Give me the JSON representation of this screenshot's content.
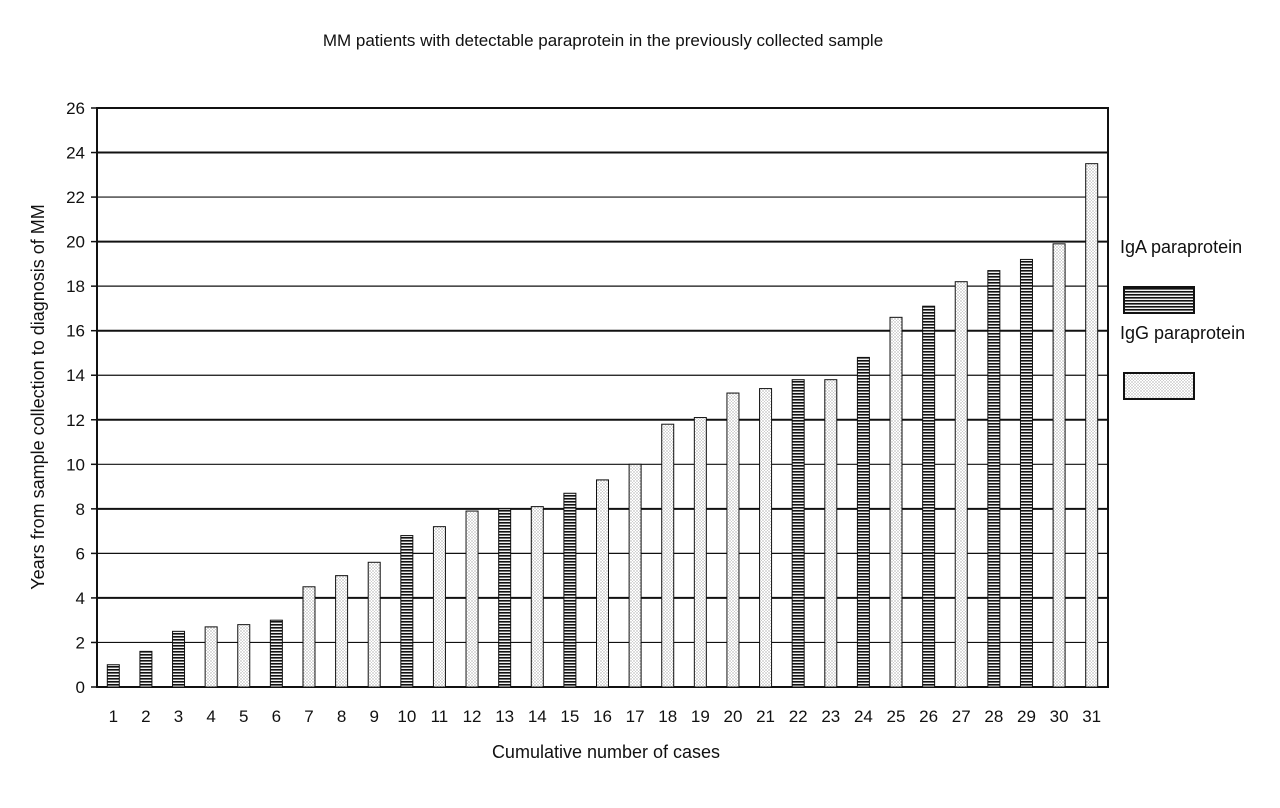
{
  "chart_data": {
    "type": "bar",
    "title": "MM patients with detectable paraprotein in the previously collected sample",
    "xlabel": "Cumulative number of cases",
    "ylabel": "Years from sample collection to diagnosis of MM",
    "ylim": [
      0,
      26
    ],
    "yticks": [
      "0",
      "2",
      "4",
      "6",
      "8",
      "10",
      "12",
      "14",
      "16",
      "18",
      "20",
      "22",
      "24",
      "26"
    ],
    "grid": "horizontal",
    "legend_position": "right",
    "series": [
      {
        "name": "IgA paraprotein",
        "pattern": "horizontal-stripes",
        "color": "#222222"
      },
      {
        "name": "IgG paraprotein",
        "pattern": "dots",
        "color": "#888888"
      }
    ],
    "categories": [
      "1",
      "2",
      "3",
      "4",
      "5",
      "6",
      "7",
      "8",
      "9",
      "10",
      "11",
      "12",
      "13",
      "14",
      "15",
      "16",
      "17",
      "18",
      "19",
      "20",
      "21",
      "22",
      "23",
      "24",
      "25",
      "26",
      "27",
      "28",
      "29",
      "30",
      "31"
    ],
    "values": [
      1.0,
      1.6,
      2.5,
      2.7,
      2.8,
      3.0,
      4.5,
      5.0,
      5.6,
      6.8,
      7.2,
      7.9,
      8.0,
      8.1,
      8.7,
      9.3,
      10.0,
      11.8,
      12.1,
      13.2,
      13.4,
      13.8,
      13.8,
      14.8,
      16.6,
      17.1,
      18.2,
      18.7,
      19.2,
      19.9,
      23.5
    ],
    "types": [
      "IgA",
      "IgA",
      "IgA",
      "IgG",
      "IgG",
      "IgA",
      "IgG",
      "IgG",
      "IgG",
      "IgA",
      "IgG",
      "IgG",
      "IgA",
      "IgG",
      "IgA",
      "IgG",
      "IgG",
      "IgG",
      "IgG",
      "IgG",
      "IgG",
      "IgA",
      "IgG",
      "IgA",
      "IgG",
      "IgA",
      "IgG",
      "IgA",
      "IgA",
      "IgG",
      "IgG"
    ]
  }
}
